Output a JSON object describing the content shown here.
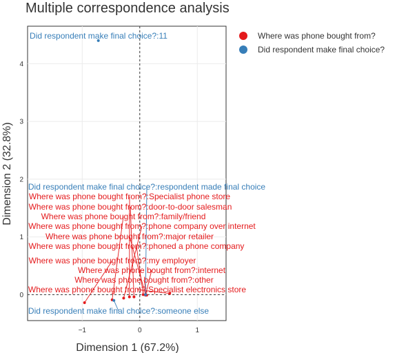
{
  "chart_data": {
    "type": "scatter",
    "title": "Multiple correspondence analysis",
    "xlabel": "Dimension 1 (67.2%)",
    "ylabel": "Dimension 2 (32.8%)",
    "xlim": [
      -1.95,
      1.5
    ],
    "ylim": [
      -0.45,
      4.65
    ],
    "xticks": [
      -1,
      0,
      1
    ],
    "yticks": [
      0,
      1,
      2,
      3,
      4
    ],
    "grid": true,
    "legend_position": "top-right",
    "series": [
      {
        "name": "Where was phone bought from?",
        "color": "#e41a1c",
        "points": [
          {
            "label": "Where was phone bought from?:Specialist phone store",
            "x": -0.18,
            "y": -0.04
          },
          {
            "label": "Where was phone bought from?:door-to-door salesman",
            "x": -0.1,
            "y": -0.04
          },
          {
            "label": "Where was phone bought from?:family/friend",
            "x": -0.48,
            "y": -0.09
          },
          {
            "label": "Where was phone bought from?:phone company over internet",
            "x": -0.28,
            "y": -0.06
          },
          {
            "label": "Where was phone bought from?:major retailer",
            "x": 0.1,
            "y": 0.0
          },
          {
            "label": "Where was phone bought from?:phoned a phone company",
            "x": 0.06,
            "y": 0.0
          },
          {
            "label": "Where was phone bought from?:my employer",
            "x": -0.96,
            "y": -0.14
          },
          {
            "label": "Where was phone bought from?:internet",
            "x": 0.1,
            "y": -0.01
          },
          {
            "label": "Where was phone bought from?:other",
            "x": 0.12,
            "y": -0.01
          },
          {
            "label": "Where was phone bought from?:Specialist electronics store",
            "x": 0.52,
            "y": 0.02
          }
        ]
      },
      {
        "name": "Did respondent make final choice?",
        "color": "#377eb8",
        "points": [
          {
            "label": "Did respondent make final choice?:11",
            "x": -0.72,
            "y": 4.4
          },
          {
            "label": "Did respondent make final choice?:respondent made final choice",
            "x": 0.1,
            "y": 0.0
          },
          {
            "label": "Did respondent make final choice?:someone else",
            "x": -0.45,
            "y": -0.1
          }
        ]
      }
    ]
  }
}
